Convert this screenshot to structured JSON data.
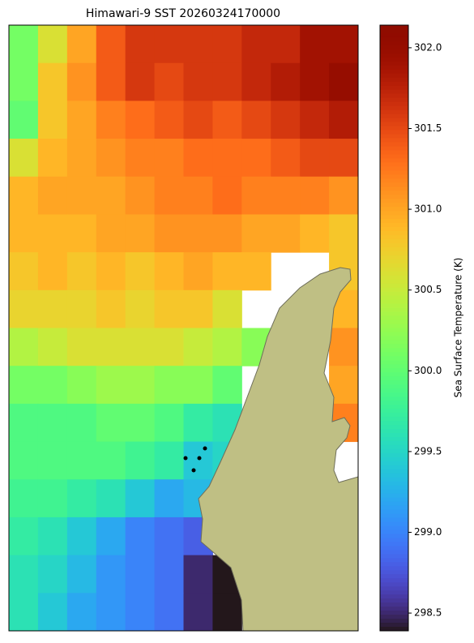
{
  "chart_data": {
    "type": "heatmap",
    "title": "Himawari-9 SST 20260324170000",
    "colormap": "turbo",
    "values": [
      [
        300.1,
        300.6,
        301.0,
        301.4,
        301.6,
        301.6,
        301.6,
        301.6,
        301.7,
        301.7,
        301.9,
        301.9
      ],
      [
        300.1,
        300.8,
        301.1,
        301.4,
        301.6,
        301.5,
        301.6,
        301.6,
        301.7,
        301.8,
        301.9,
        302.0
      ],
      [
        300.0,
        300.8,
        301.0,
        301.2,
        301.3,
        301.4,
        301.5,
        301.4,
        301.5,
        301.6,
        301.7,
        301.8
      ],
      [
        300.6,
        300.9,
        301.0,
        301.1,
        301.2,
        301.2,
        301.3,
        301.3,
        301.3,
        301.4,
        301.5,
        301.5
      ],
      [
        300.9,
        301.0,
        301.0,
        301.0,
        301.1,
        301.2,
        301.2,
        301.3,
        301.2,
        301.2,
        301.2,
        301.1
      ],
      [
        300.9,
        300.9,
        300.9,
        301.0,
        301.0,
        301.1,
        301.1,
        301.1,
        301.0,
        301.0,
        300.9,
        300.8
      ],
      [
        300.8,
        300.9,
        300.8,
        300.9,
        300.8,
        300.9,
        301.0,
        300.9,
        300.9,
        null,
        null,
        300.8
      ],
      [
        300.7,
        300.7,
        300.7,
        300.8,
        300.7,
        300.8,
        300.8,
        300.6,
        null,
        null,
        null,
        300.9
      ],
      [
        300.4,
        300.5,
        300.6,
        300.6,
        300.6,
        300.6,
        300.5,
        300.4,
        300.2,
        null,
        null,
        301.1
      ],
      [
        300.1,
        300.1,
        300.2,
        300.3,
        300.3,
        300.2,
        300.2,
        300.0,
        null,
        null,
        null,
        301.0
      ],
      [
        299.9,
        299.9,
        299.9,
        300.0,
        300.0,
        299.9,
        299.7,
        299.6,
        null,
        null,
        null,
        301.2
      ],
      [
        299.9,
        299.9,
        299.9,
        299.9,
        299.8,
        299.7,
        299.4,
        299.5,
        null,
        null,
        null,
        null
      ],
      [
        299.8,
        299.8,
        299.7,
        299.6,
        299.4,
        299.2,
        299.3,
        null,
        null,
        null,
        null,
        null
      ],
      [
        299.7,
        299.6,
        299.4,
        299.2,
        299.0,
        298.9,
        298.8,
        null,
        null,
        null,
        null,
        null
      ],
      [
        299.6,
        299.5,
        299.3,
        299.1,
        299.0,
        298.9,
        298.5,
        298.3,
        null,
        null,
        null,
        null
      ],
      [
        299.6,
        299.4,
        299.2,
        299.1,
        299.0,
        298.9,
        298.5,
        298.3,
        null,
        null,
        null,
        null
      ]
    ],
    "colorbar": {
      "label": "Sea Surface Temperature (K)",
      "lim": [
        298.39,
        302.14
      ],
      "ticks": [
        298.5,
        {
          "value": 299,
          "label": "299.0"
        },
        299.5,
        {
          "value": 300,
          "label": "300.0"
        },
        300.5,
        {
          "value": 301,
          "label": "301.0"
        },
        301.5,
        {
          "value": 302,
          "label": "302.0"
        }
      ]
    }
  }
}
